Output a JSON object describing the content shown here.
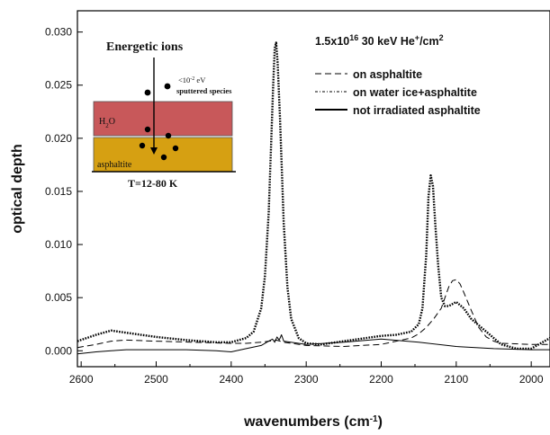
{
  "chart_data": {
    "type": "line",
    "xlabel": "wavenumbers (cm",
    "xlabel_sup": "-1",
    "xlabel_end": ")",
    "ylabel": "optical depth",
    "xlim": [
      2605,
      1975
    ],
    "ylim": [
      -0.0015,
      0.032
    ],
    "x_ticks": [
      2600,
      2500,
      2400,
      2300,
      2200,
      2100,
      2000
    ],
    "y_ticks": [
      0.0,
      0.005,
      0.01,
      0.015,
      0.02,
      0.025,
      0.03
    ],
    "y_tick_labels": [
      "0.000",
      "0.005",
      "0.010",
      "0.015",
      "0.020",
      "0.025",
      "0.030"
    ],
    "annotation": {
      "base": "1.5x10",
      "exp": "16",
      "mid": " 30 keV He",
      "sup": "+",
      "tail": "/cm",
      "sup2": "2"
    },
    "legend_position": "top-right",
    "series": [
      {
        "name": "on asphaltite",
        "style": "dashed",
        "x": [
          2605,
          2580,
          2560,
          2540,
          2500,
          2450,
          2400,
          2380,
          2360,
          2350,
          2340,
          2330,
          2300,
          2250,
          2200,
          2180,
          2160,
          2150,
          2140,
          2130,
          2120,
          2115,
          2110,
          2105,
          2100,
          2095,
          2090,
          2080,
          2070,
          2060,
          2050,
          2040,
          2000,
          1975
        ],
        "y": [
          0.0003,
          0.0006,
          0.0009,
          0.001,
          0.0009,
          0.0008,
          0.0007,
          0.0007,
          0.0008,
          0.0009,
          0.001,
          0.0008,
          0.0005,
          0.0004,
          0.0006,
          0.0009,
          0.0012,
          0.0016,
          0.0022,
          0.003,
          0.004,
          0.005,
          0.006,
          0.0066,
          0.0067,
          0.0063,
          0.0055,
          0.0038,
          0.0022,
          0.0013,
          0.0009,
          0.0007,
          0.0006,
          0.0006
        ]
      },
      {
        "name": "on water ice+asphaltite",
        "style": "dashdot",
        "x": [
          2605,
          2580,
          2560,
          2540,
          2500,
          2460,
          2420,
          2400,
          2380,
          2370,
          2360,
          2355,
          2350,
          2347,
          2344,
          2342,
          2340,
          2338,
          2335,
          2330,
          2325,
          2320,
          2310,
          2300,
          2280,
          2250,
          2220,
          2200,
          2180,
          2160,
          2150,
          2145,
          2140,
          2137,
          2134,
          2131,
          2128,
          2124,
          2120,
          2115,
          2110,
          2100,
          2090,
          2080,
          2070,
          2060,
          2050,
          2040,
          2020,
          2000,
          1985,
          1975
        ],
        "y": [
          0.0009,
          0.0015,
          0.0019,
          0.0017,
          0.0013,
          0.001,
          0.0008,
          0.0008,
          0.0012,
          0.0018,
          0.004,
          0.007,
          0.013,
          0.019,
          0.025,
          0.0285,
          0.029,
          0.027,
          0.022,
          0.012,
          0.006,
          0.003,
          0.0012,
          0.0007,
          0.0006,
          0.0009,
          0.0012,
          0.0014,
          0.0015,
          0.0018,
          0.0025,
          0.004,
          0.009,
          0.0145,
          0.0165,
          0.0155,
          0.012,
          0.008,
          0.005,
          0.0042,
          0.0042,
          0.0046,
          0.004,
          0.003,
          0.0024,
          0.0018,
          0.0012,
          0.0006,
          0.0002,
          0.0002,
          0.0008,
          0.0012
        ]
      },
      {
        "name": "not irradiated asphaltite",
        "style": "solid",
        "x": [
          2605,
          2580,
          2560,
          2540,
          2500,
          2460,
          2420,
          2400,
          2380,
          2360,
          2350,
          2345,
          2342,
          2339,
          2336,
          2333,
          2330,
          2300,
          2250,
          2200,
          2150,
          2100,
          2050,
          2000,
          1975
        ],
        "y": [
          -0.0003,
          -0.0001,
          0.0,
          0.0001,
          0.0001,
          0.0001,
          0.0,
          -0.0001,
          0.0002,
          0.0005,
          0.0009,
          0.0011,
          0.0008,
          0.0013,
          0.001,
          0.0015,
          0.0009,
          0.0006,
          0.0008,
          0.0011,
          0.0008,
          0.0004,
          0.0002,
          0.0001,
          0.0001
        ]
      }
    ]
  },
  "inset": {
    "title": "Energetic  ions",
    "note_line1": "<10",
    "note_exp": "-2",
    "note_unit": " eV",
    "note_line2": "sputtered  species",
    "layer_top": "H",
    "layer_top_sub": "2",
    "layer_top_end": "O",
    "layer_bottom": "asphaltite",
    "temperature": "T=12-80  K",
    "colors": {
      "water": "#c8585a",
      "asphaltite": "#d6a012"
    }
  }
}
